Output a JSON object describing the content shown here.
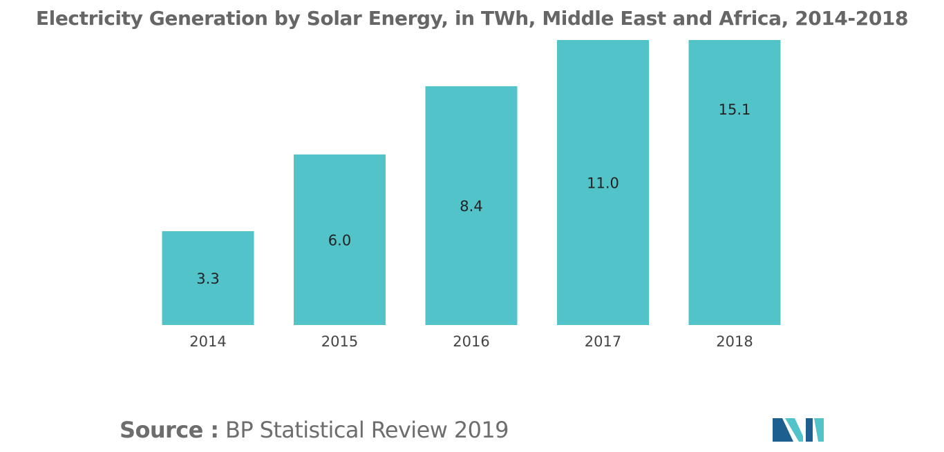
{
  "chart_data": {
    "type": "bar",
    "title": "Electricity Generation by Solar Energy, in TWh, Middle East and Africa, 2014-2018",
    "categories": [
      "2014",
      "2015",
      "2016",
      "2017",
      "2018"
    ],
    "values": [
      3.3,
      6.0,
      8.4,
      11.0,
      15.1
    ],
    "value_labels": [
      "3.3",
      "6.0",
      "8.4",
      "11.0",
      "15.1"
    ],
    "xlabel": "",
    "ylabel": "",
    "ylim": [
      0,
      10
    ],
    "grid": false,
    "legend": "none",
    "bar_color": "#52c3c9"
  },
  "source": {
    "label": "Source :",
    "text": "BP Statistical Review 2019"
  },
  "colors": {
    "bar": "#52c3c9",
    "title": "#666666",
    "tick_text": "#444444",
    "value_text": "#222222",
    "logo_dark": "#1d5f8f",
    "logo_light": "#52c3c9"
  }
}
